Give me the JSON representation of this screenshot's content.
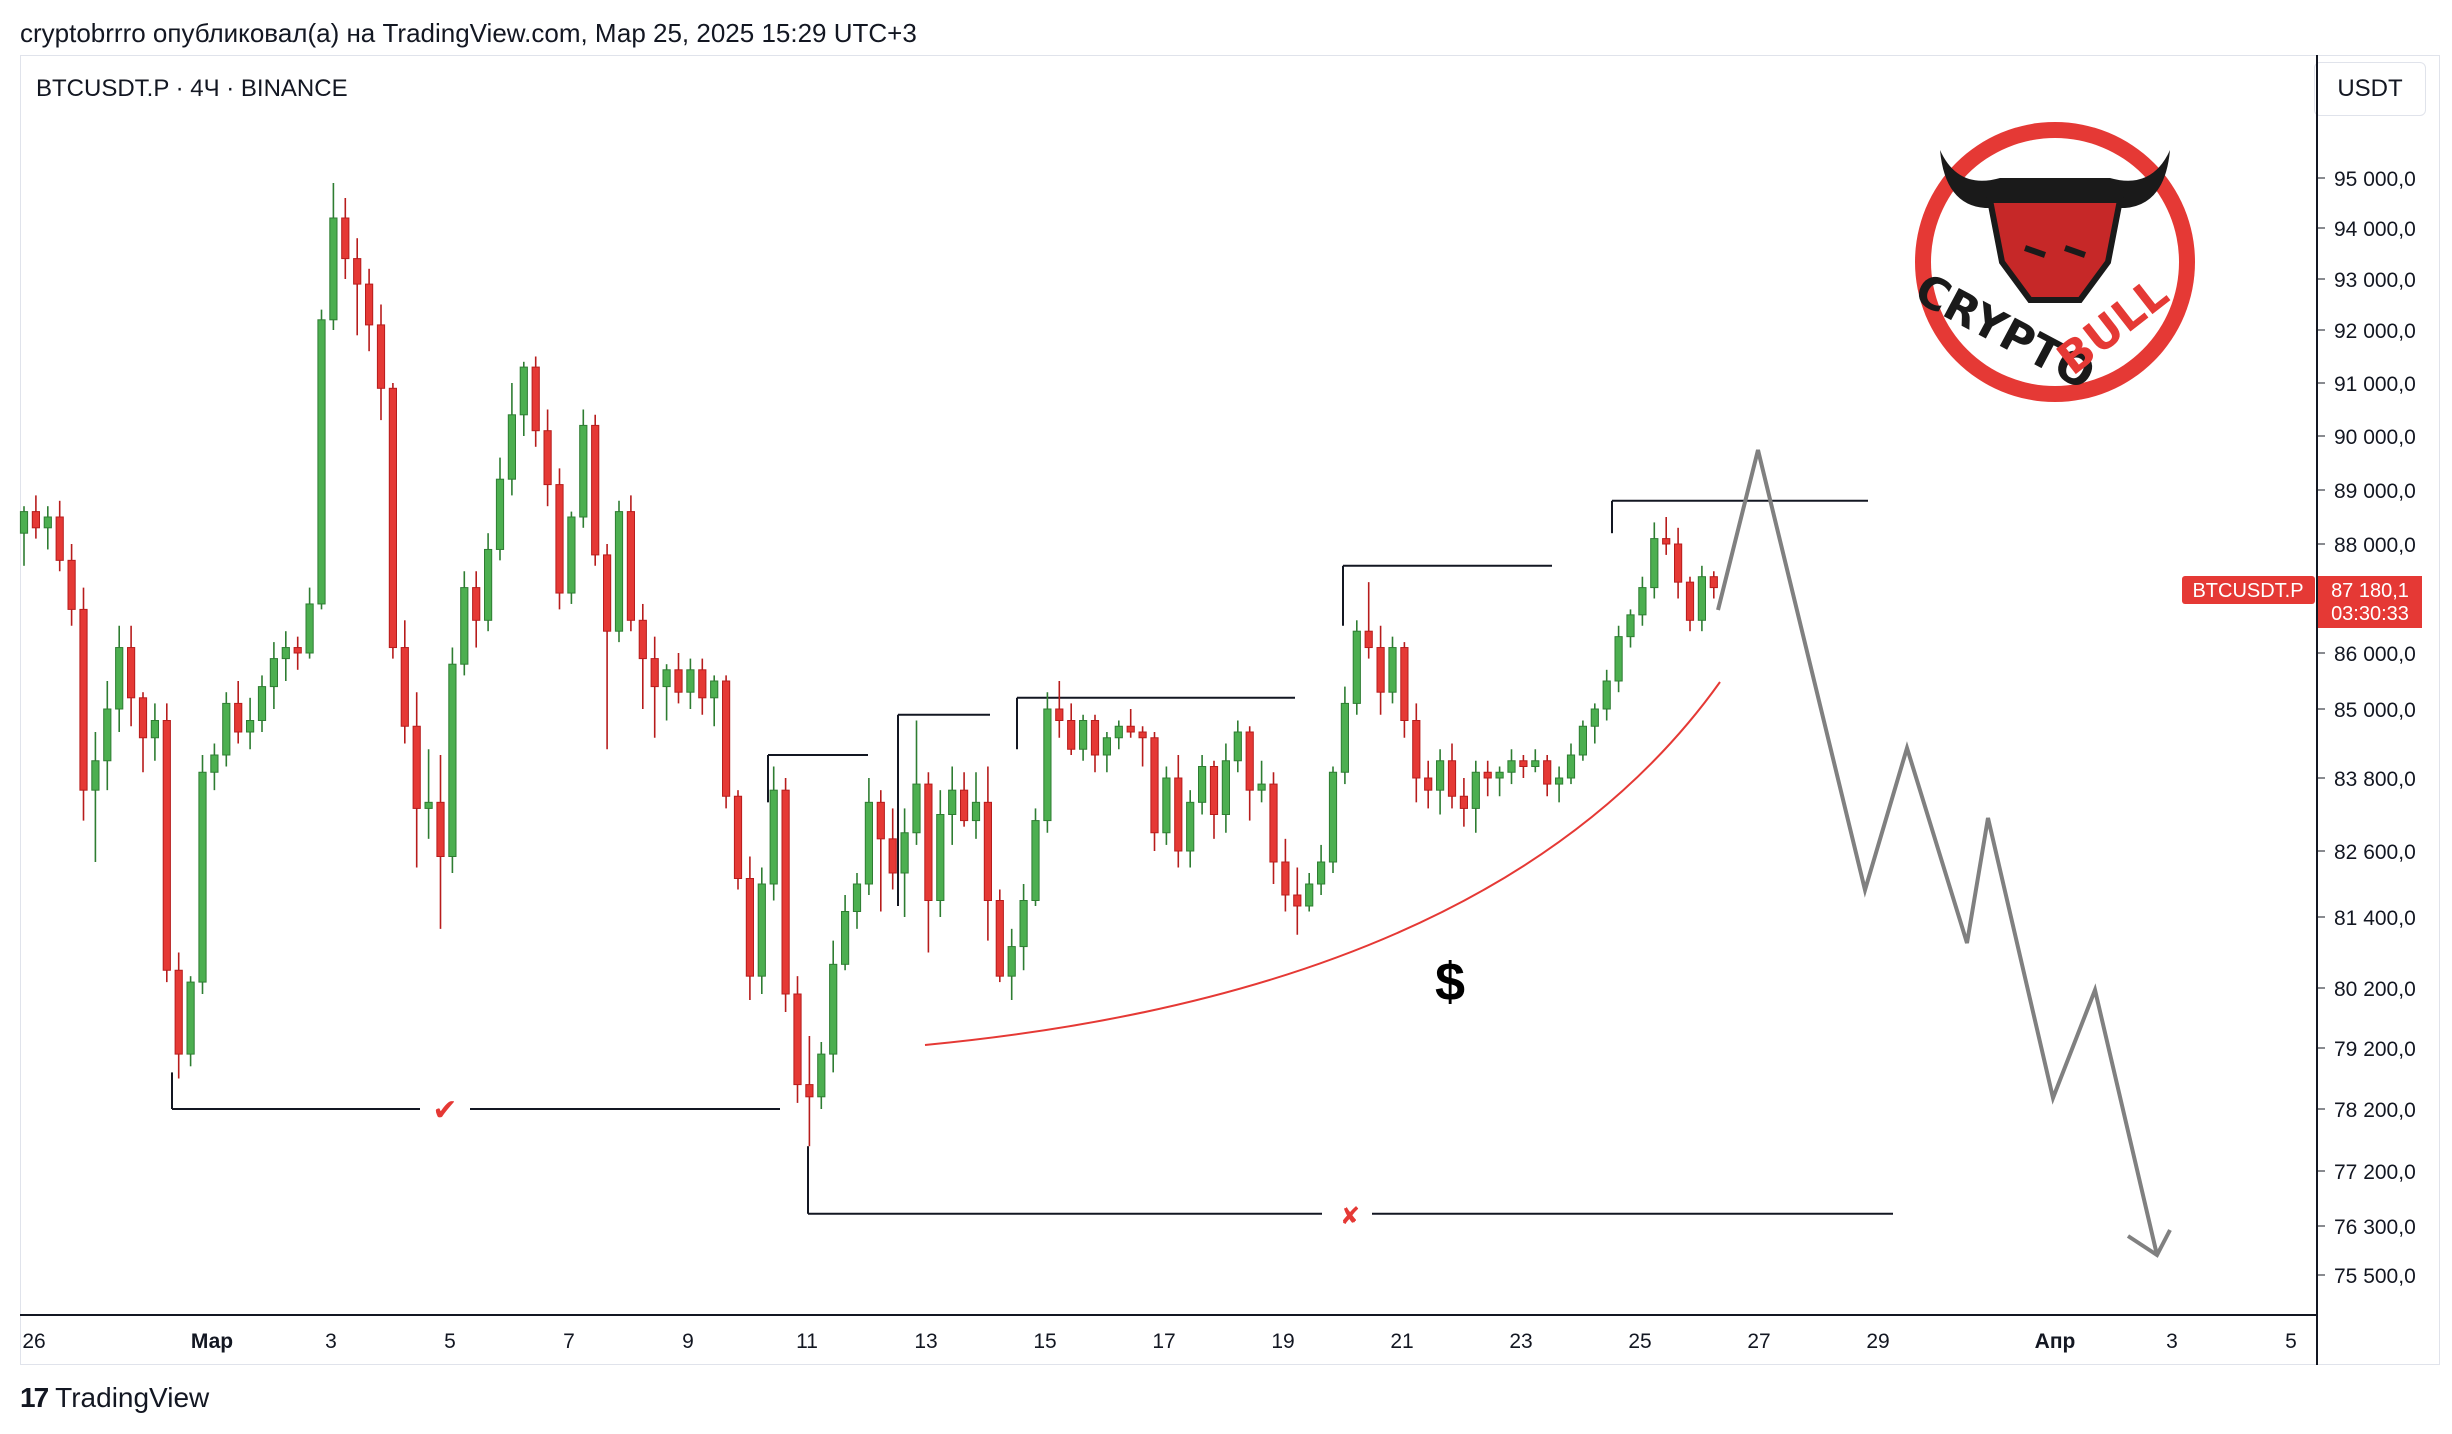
{
  "header": {
    "publish_text": "cryptobrrro опубликовал(а) на TradingView.com, Мар 25, 2025 15:29 UTC+3"
  },
  "symbol": {
    "title": "BTCUSDT.P · 4Ч · BINANCE",
    "currency": "USDT",
    "price_tag_name": "BTCUSDT.P",
    "last_price": "87 180,1",
    "countdown": "03:30:33"
  },
  "logo": {
    "text_left": "CRYPTO",
    "text_right": "BULL"
  },
  "annotations": {
    "dollar": "$",
    "check": "✔",
    "cross": "✘"
  },
  "footer": {
    "brand": "TradingView",
    "logo_mark": "17"
  },
  "colors": {
    "up": "#2e7d32",
    "up_fill": "#4caf50",
    "down": "#b71c1c",
    "down_fill": "#e53935",
    "accent_red": "#e53935",
    "projection": "#808080"
  },
  "chart_data": {
    "type": "candlestick",
    "y_axis_labels": [
      "95 000,0",
      "94 000,0",
      "93 000,0",
      "92 000,0",
      "91 000,0",
      "90 000,0",
      "89 000,0",
      "88 000,0",
      "86 000,0",
      "85 000,0",
      "83 800,0",
      "82 600,0",
      "81 400,0",
      "80 200,0",
      "79 200,0",
      "78 200,0",
      "77 200,0",
      "76 300,0",
      "75 500,0"
    ],
    "x_axis_labels": [
      "26",
      "Мар",
      "3",
      "5",
      "7",
      "9",
      "11",
      "13",
      "15",
      "17",
      "19",
      "21",
      "23",
      "25",
      "27",
      "29",
      "Апр",
      "3",
      "5"
    ],
    "candles_ohlc": [
      [
        88200,
        88700,
        87600,
        88600
      ],
      [
        88600,
        88900,
        88100,
        88300
      ],
      [
        88300,
        88700,
        87900,
        88500
      ],
      [
        88500,
        88800,
        87500,
        87700
      ],
      [
        87700,
        88000,
        86500,
        86800
      ],
      [
        86800,
        87200,
        83100,
        83600
      ],
      [
        83600,
        84600,
        82400,
        84100
      ],
      [
        84100,
        85500,
        83600,
        85000
      ],
      [
        85000,
        86500,
        84600,
        86100
      ],
      [
        86100,
        86500,
        84700,
        85200
      ],
      [
        85200,
        85300,
        83900,
        84500
      ],
      [
        84500,
        85100,
        84100,
        84800
      ],
      [
        84800,
        85100,
        80300,
        80500
      ],
      [
        80500,
        80800,
        78700,
        79100
      ],
      [
        79100,
        80400,
        78900,
        80300
      ],
      [
        80300,
        84200,
        80100,
        83900
      ],
      [
        83900,
        84400,
        83600,
        84200
      ],
      [
        84200,
        85300,
        84000,
        85100
      ],
      [
        85100,
        85500,
        84400,
        84600
      ],
      [
        84600,
        85200,
        84300,
        84800
      ],
      [
        84800,
        85600,
        84600,
        85400
      ],
      [
        85400,
        86200,
        85000,
        85900
      ],
      [
        85900,
        86400,
        85500,
        86100
      ],
      [
        86100,
        86300,
        85700,
        86000
      ],
      [
        86000,
        87200,
        85900,
        86900
      ],
      [
        86900,
        92400,
        86800,
        92200
      ],
      [
        92200,
        94900,
        92000,
        94200
      ],
      [
        94200,
        94600,
        93000,
        93400
      ],
      [
        93400,
        93800,
        91900,
        92900
      ],
      [
        92900,
        93200,
        91600,
        92100
      ],
      [
        92100,
        92500,
        90300,
        90900
      ],
      [
        90900,
        91000,
        85900,
        86100
      ],
      [
        86100,
        86600,
        84400,
        84700
      ],
      [
        84700,
        85300,
        82300,
        83300
      ],
      [
        83300,
        84300,
        82800,
        83400
      ],
      [
        83400,
        84200,
        81200,
        82500
      ],
      [
        82500,
        86100,
        82200,
        85800
      ],
      [
        85800,
        87500,
        85600,
        87200
      ],
      [
        87200,
        87500,
        86100,
        86600
      ],
      [
        86600,
        88200,
        86400,
        87900
      ],
      [
        87900,
        89600,
        87700,
        89200
      ],
      [
        89200,
        91000,
        88900,
        90400
      ],
      [
        90400,
        91400,
        90000,
        91300
      ],
      [
        91300,
        91500,
        89800,
        90100
      ],
      [
        90100,
        90500,
        88700,
        89100
      ],
      [
        89100,
        89400,
        86800,
        87100
      ],
      [
        87100,
        88600,
        86900,
        88500
      ],
      [
        88500,
        90500,
        88300,
        90200
      ],
      [
        90200,
        90400,
        87600,
        87800
      ],
      [
        87800,
        88000,
        84300,
        86400
      ],
      [
        86400,
        88800,
        86200,
        88600
      ],
      [
        88600,
        88900,
        86400,
        86600
      ],
      [
        86600,
        86900,
        85000,
        85900
      ],
      [
        85900,
        86300,
        84500,
        85400
      ],
      [
        85400,
        85800,
        84800,
        85700
      ],
      [
        85700,
        86000,
        85100,
        85300
      ],
      [
        85300,
        85900,
        85000,
        85700
      ],
      [
        85700,
        85900,
        84900,
        85200
      ],
      [
        85200,
        85600,
        84700,
        85500
      ],
      [
        85500,
        85600,
        83300,
        83500
      ],
      [
        83500,
        83600,
        81900,
        82100
      ],
      [
        82100,
        82500,
        80000,
        80400
      ],
      [
        80400,
        82300,
        80100,
        82000
      ],
      [
        82000,
        84000,
        81700,
        83600
      ],
      [
        83600,
        83800,
        79800,
        80100
      ],
      [
        80100,
        80400,
        78300,
        78600
      ],
      [
        78600,
        79400,
        77600,
        78400
      ],
      [
        78400,
        79300,
        78200,
        79100
      ],
      [
        79100,
        81000,
        78800,
        80600
      ],
      [
        80600,
        81800,
        80500,
        81500
      ],
      [
        81500,
        82200,
        81200,
        82000
      ],
      [
        82000,
        83800,
        81800,
        83400
      ],
      [
        83400,
        83600,
        81500,
        82800
      ],
      [
        82800,
        83300,
        81900,
        82200
      ],
      [
        82200,
        83300,
        81400,
        82900
      ],
      [
        82900,
        84800,
        82700,
        83700
      ],
      [
        83700,
        83900,
        80800,
        81700
      ],
      [
        81700,
        83600,
        81400,
        83200
      ],
      [
        83200,
        84000,
        82700,
        83600
      ],
      [
        83600,
        83900,
        83000,
        83100
      ],
      [
        83100,
        83900,
        82800,
        83400
      ],
      [
        83400,
        84000,
        81000,
        81700
      ],
      [
        81700,
        81900,
        80300,
        80400
      ],
      [
        80400,
        81200,
        80000,
        80900
      ],
      [
        80900,
        82000,
        80500,
        81700
      ],
      [
        81700,
        83300,
        81600,
        83100
      ],
      [
        83100,
        85300,
        82900,
        85000
      ],
      [
        85000,
        85500,
        84500,
        84800
      ],
      [
        84800,
        85100,
        84200,
        84300
      ],
      [
        84300,
        84900,
        84100,
        84800
      ],
      [
        84800,
        84900,
        83900,
        84200
      ],
      [
        84200,
        84600,
        83900,
        84500
      ],
      [
        84500,
        84800,
        84300,
        84700
      ],
      [
        84700,
        85000,
        84500,
        84600
      ],
      [
        84600,
        84700,
        84000,
        84500
      ],
      [
        84500,
        84600,
        82600,
        82900
      ],
      [
        82900,
        84000,
        82700,
        83800
      ],
      [
        83800,
        84200,
        82300,
        82600
      ],
      [
        82600,
        83600,
        82300,
        83400
      ],
      [
        83400,
        84200,
        83200,
        84000
      ],
      [
        84000,
        84100,
        82800,
        83200
      ],
      [
        83200,
        84400,
        82900,
        84100
      ],
      [
        84100,
        84800,
        83900,
        84600
      ],
      [
        84600,
        84700,
        83100,
        83600
      ],
      [
        83600,
        84100,
        83400,
        83700
      ],
      [
        83700,
        83900,
        82000,
        82400
      ],
      [
        82400,
        82800,
        81500,
        81800
      ],
      [
        81800,
        82300,
        81100,
        81600
      ],
      [
        81600,
        82200,
        81500,
        82000
      ],
      [
        82000,
        82700,
        81800,
        82400
      ],
      [
        82400,
        84000,
        82200,
        83900
      ],
      [
        83900,
        85400,
        83700,
        85100
      ],
      [
        85100,
        86600,
        84900,
        86400
      ],
      [
        86400,
        87300,
        85900,
        86100
      ],
      [
        86100,
        86500,
        84900,
        85300
      ],
      [
        85300,
        86300,
        85100,
        86100
      ],
      [
        86100,
        86200,
        84500,
        84800
      ],
      [
        84800,
        85100,
        83400,
        83800
      ],
      [
        83800,
        84100,
        83300,
        83600
      ],
      [
        83600,
        84300,
        83200,
        84100
      ],
      [
        84100,
        84400,
        83300,
        83500
      ],
      [
        83500,
        83800,
        83000,
        83300
      ],
      [
        83300,
        84100,
        82900,
        83900
      ],
      [
        83900,
        84100,
        83500,
        83800
      ],
      [
        83800,
        84000,
        83500,
        83900
      ],
      [
        83900,
        84300,
        83700,
        84100
      ],
      [
        84100,
        84200,
        83800,
        84000
      ],
      [
        84000,
        84300,
        83900,
        84100
      ],
      [
        84100,
        84200,
        83500,
        83700
      ],
      [
        83700,
        84000,
        83400,
        83800
      ],
      [
        83800,
        84400,
        83700,
        84200
      ],
      [
        84200,
        84800,
        84100,
        84700
      ],
      [
        84700,
        85100,
        84400,
        85000
      ],
      [
        85000,
        85700,
        84800,
        85500
      ],
      [
        85500,
        86500,
        85300,
        86300
      ],
      [
        86300,
        86800,
        86100,
        86700
      ],
      [
        86700,
        87400,
        86500,
        87200
      ],
      [
        87200,
        88400,
        87000,
        88100
      ],
      [
        88100,
        88500,
        87800,
        88000
      ],
      [
        88000,
        88300,
        87000,
        87300
      ],
      [
        87300,
        87400,
        86400,
        86600
      ],
      [
        86600,
        87600,
        86400,
        87400
      ],
      [
        87400,
        87500,
        87000,
        87200
      ]
    ],
    "levels": [
      {
        "label": "✔",
        "value": 78200
      },
      {
        "label": "✘",
        "value": 76500
      }
    ]
  }
}
